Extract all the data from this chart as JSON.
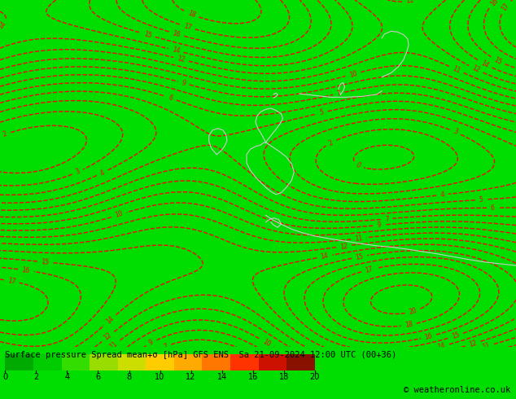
{
  "title_line1": "Surface pressure Spread mean+σ [hPa] GFS ENS  Sa 21-09-2024 12:00 UTC (00+36)",
  "copyright": "© weatheronline.co.uk",
  "background_color": "#00dd00",
  "contour_color": "#ff0000",
  "coast_color": "#cccccc",
  "cbar_ticks": [
    0,
    2,
    4,
    6,
    8,
    10,
    12,
    14,
    16,
    18,
    20
  ],
  "cbar_colors": [
    "#00aa00",
    "#00cc00",
    "#33dd00",
    "#99dd00",
    "#ccdd00",
    "#ffcc00",
    "#ffaa00",
    "#ff7700",
    "#ff3300",
    "#cc1100",
    "#881100"
  ],
  "fig_width": 6.34,
  "fig_height": 4.9,
  "dpi": 100,
  "map_bg": "#00dd00",
  "title_fontsize": 7.5,
  "copyright_fontsize": 7.5
}
